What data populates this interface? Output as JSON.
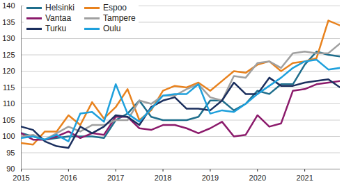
{
  "chart_data": {
    "type": "line",
    "x": [
      2015,
      2015.25,
      2015.5,
      2015.75,
      2016,
      2016.25,
      2016.5,
      2016.75,
      2017,
      2017.25,
      2017.5,
      2017.75,
      2018,
      2018.25,
      2018.5,
      2018.75,
      2019,
      2019.25,
      2019.5,
      2019.75,
      2020,
      2020.25,
      2020.5,
      2020.75,
      2021,
      2021.25,
      2021.5,
      2021.75
    ],
    "series": [
      {
        "name": "Helsinki",
        "color": "#1f6e8c",
        "values": [
          101,
          100,
          99,
          99.5,
          100,
          100,
          100,
          99.5,
          105,
          107,
          111,
          106,
          105,
          105,
          105,
          106,
          111,
          111,
          108,
          110,
          114,
          113,
          116,
          116,
          122,
          126,
          125,
          124.5
        ]
      },
      {
        "name": "Espoo",
        "color": "#e8821e",
        "values": [
          98,
          97.5,
          101.5,
          101.5,
          106.5,
          103.5,
          110.5,
          105.5,
          109,
          114.5,
          105,
          108,
          114,
          115.5,
          115,
          116.5,
          114,
          117,
          120,
          119.5,
          122,
          123,
          120,
          122.5,
          123,
          124,
          135.5,
          134
        ]
      },
      {
        "name": "Vantaa",
        "color": "#8b1a6b",
        "values": [
          101,
          99,
          99,
          100,
          101.5,
          99.5,
          101,
          100.5,
          106,
          106,
          102.5,
          102,
          103.5,
          103.5,
          102.5,
          101,
          102.5,
          104.5,
          100,
          100.5,
          106.5,
          103,
          104,
          114,
          114.5,
          116,
          116.5,
          117
        ]
      },
      {
        "name": "Tampere",
        "color": "#a0a0a0",
        "values": [
          100,
          100.5,
          99,
          101,
          103,
          101.5,
          103.5,
          103.5,
          105,
          105,
          111,
          110,
          112.5,
          112.5,
          114.5,
          116,
          112,
          111,
          118.5,
          118,
          122.5,
          123,
          121,
          125.5,
          126,
          125.5,
          125.5,
          128.5
        ]
      },
      {
        "name": "Turku",
        "color": "#1b2f5e",
        "values": [
          103,
          102,
          98.5,
          97,
          96.5,
          103,
          101,
          103,
          106.5,
          106,
          103.5,
          109,
          111,
          112,
          108.5,
          108.5,
          108,
          111,
          116.5,
          113,
          113,
          118,
          115.5,
          115.5,
          116.5,
          117,
          117.5,
          115
        ]
      },
      {
        "name": "Oulu",
        "color": "#1ea0dc",
        "values": [
          99.5,
          100,
          99,
          100.5,
          98.5,
          107,
          107.5,
          104.5,
          116,
          107,
          104.5,
          108.5,
          112.5,
          113,
          113,
          116,
          107,
          108,
          107.5,
          110,
          113,
          115.5,
          118,
          121,
          123,
          123.5,
          120.5,
          121
        ]
      }
    ],
    "xlim": [
      2015,
      2021.75
    ],
    "xticks": [
      2015,
      2016,
      2017,
      2018,
      2019,
      2020,
      2021
    ],
    "ylim": [
      90,
      140
    ],
    "yticks": [
      90,
      95,
      100,
      105,
      110,
      115,
      120,
      125,
      130,
      135,
      140
    ],
    "grid": true,
    "legend": "top-left"
  }
}
